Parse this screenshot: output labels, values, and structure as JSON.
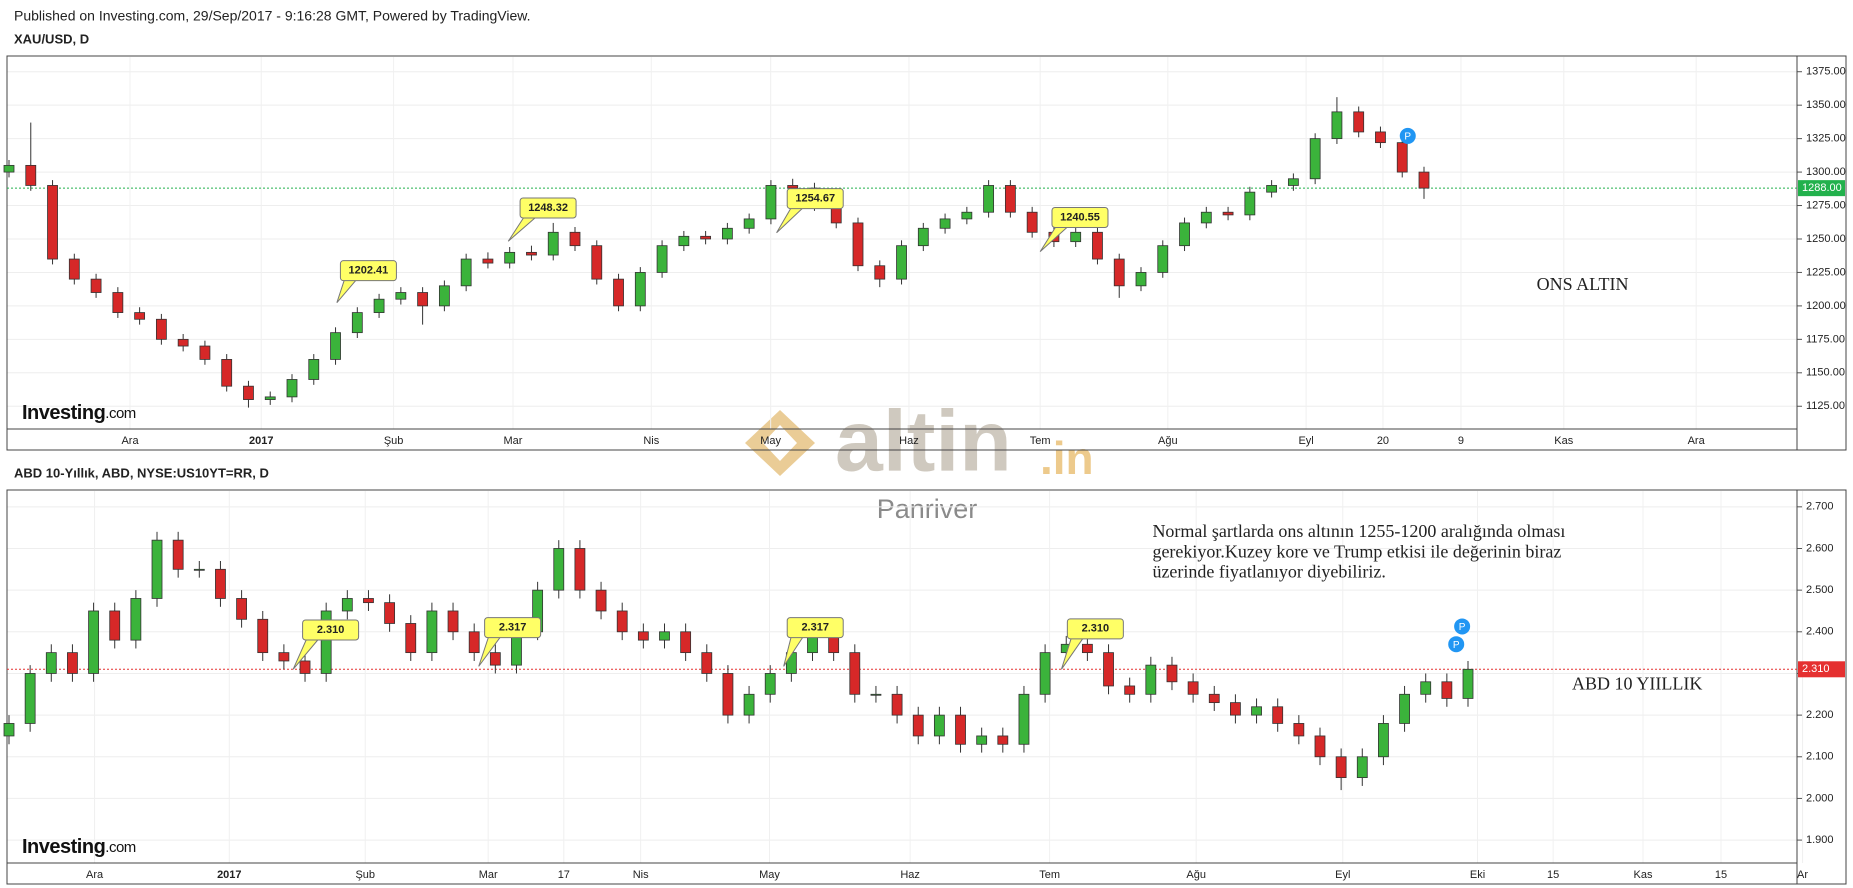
{
  "header": "Published on Investing.com, 29/Sep/2017 - 9:16:28 GMT, Powered by TradingView.",
  "watermark": {
    "main": "altin",
    "suffix": ".in",
    "sub": "Panriver"
  },
  "logo": {
    "main": "Investing",
    "suffix": ".com"
  },
  "event_marker": "P",
  "chart_data": [
    {
      "type": "candlestick",
      "title": "XAU/USD, D",
      "x_labels": [
        "Ara",
        "2017",
        "Şub",
        "Mar",
        "Nis",
        "May",
        "Haz",
        "Tem",
        "Ağu",
        "Eyl",
        "20",
        "9",
        "Kas",
        "Ara"
      ],
      "open": [
        1300,
        1305,
        1290,
        1235,
        1220,
        1210,
        1195,
        1190,
        1175,
        1170,
        1160,
        1140,
        1130,
        1132,
        1145,
        1160,
        1180,
        1195,
        1205,
        1210,
        1200,
        1215,
        1235,
        1232,
        1240,
        1238,
        1255,
        1245,
        1220,
        1200,
        1225,
        1245,
        1252,
        1250,
        1258,
        1265,
        1290,
        1288,
        1275,
        1262,
        1230,
        1220,
        1245,
        1258,
        1265,
        1270,
        1290,
        1270,
        1255,
        1248,
        1255,
        1235,
        1215,
        1225,
        1245,
        1262,
        1270,
        1268,
        1285,
        1290,
        1295,
        1325,
        1345,
        1330,
        1322,
        1300
      ],
      "high": [
        1309,
        1337,
        1294,
        1239,
        1224,
        1214,
        1199,
        1194,
        1179,
        1174,
        1164,
        1144,
        1136,
        1149,
        1164,
        1184,
        1199,
        1209,
        1214,
        1214,
        1219,
        1239,
        1240,
        1244,
        1245,
        1262,
        1259,
        1249,
        1224,
        1229,
        1249,
        1256,
        1256,
        1262,
        1269,
        1294,
        1295,
        1292,
        1279,
        1266,
        1234,
        1249,
        1262,
        1269,
        1274,
        1294,
        1294,
        1274,
        1259,
        1259,
        1259,
        1239,
        1229,
        1249,
        1266,
        1274,
        1274,
        1289,
        1294,
        1299,
        1329,
        1356,
        1349,
        1334,
        1326,
        1304
      ],
      "low": [
        1296,
        1286,
        1231,
        1216,
        1206,
        1191,
        1186,
        1171,
        1166,
        1156,
        1136,
        1124,
        1126,
        1128,
        1141,
        1156,
        1176,
        1191,
        1201,
        1186,
        1196,
        1211,
        1228,
        1228,
        1234,
        1234,
        1241,
        1216,
        1196,
        1196,
        1221,
        1241,
        1246,
        1246,
        1254,
        1261,
        1284,
        1271,
        1258,
        1226,
        1214,
        1216,
        1241,
        1254,
        1261,
        1266,
        1266,
        1251,
        1244,
        1244,
        1231,
        1206,
        1211,
        1221,
        1241,
        1258,
        1264,
        1264,
        1281,
        1286,
        1291,
        1321,
        1326,
        1318,
        1296,
        1280
      ],
      "close": [
        1305,
        1290,
        1235,
        1220,
        1210,
        1195,
        1190,
        1175,
        1170,
        1160,
        1140,
        1130,
        1132,
        1145,
        1160,
        1180,
        1195,
        1205,
        1210,
        1200,
        1215,
        1235,
        1232,
        1240,
        1238,
        1255,
        1245,
        1220,
        1200,
        1225,
        1245,
        1252,
        1250,
        1258,
        1265,
        1290,
        1288,
        1275,
        1262,
        1230,
        1220,
        1245,
        1258,
        1265,
        1270,
        1290,
        1270,
        1255,
        1248,
        1255,
        1235,
        1215,
        1225,
        1245,
        1262,
        1270,
        1268,
        1285,
        1290,
        1295,
        1325,
        1345,
        1330,
        1322,
        1300,
        1288
      ],
      "up_color": "#3bb33b",
      "down_color": "#d62828",
      "last_color": "#22b14c",
      "ylim": [
        1108,
        1386
      ],
      "yticks": [
        {
          "value": 1125,
          "label": "1125.00"
        },
        {
          "value": 1150,
          "label": "1150.00"
        },
        {
          "value": 1175,
          "label": "1175.00"
        },
        {
          "value": 1200,
          "label": "1200.00"
        },
        {
          "value": 1225,
          "label": "1225.00"
        },
        {
          "value": 1250,
          "label": "1250.00"
        },
        {
          "value": 1275,
          "label": "1275.00"
        },
        {
          "value": 1300,
          "label": "1300.00"
        },
        {
          "value": 1325,
          "label": "1325.00"
        },
        {
          "value": 1350,
          "label": "1350.00"
        },
        {
          "value": 1375,
          "label": "1375.00"
        }
      ],
      "last_price": {
        "value": 1288,
        "label": "1288.00"
      },
      "callouts": [
        1202.41,
        1248.32,
        1254.67,
        1240.55
      ],
      "annotation": "ONS ALTIN"
    },
    {
      "type": "candlestick",
      "title": "ABD 10-Yıllık, ABD, NYSE:US10YT=RR, D",
      "x_labels": [
        "Ara",
        "2017",
        "Şub",
        "Mar",
        "17",
        "Nis",
        "May",
        "Haz",
        "Tem",
        "Ağu",
        "Eyl",
        "Eki",
        "15",
        "Kas",
        "15",
        "Ar"
      ],
      "open": [
        2.15,
        2.18,
        2.3,
        2.35,
        2.3,
        2.45,
        2.38,
        2.48,
        2.62,
        2.55,
        2.55,
        2.48,
        2.43,
        2.35,
        2.33,
        2.3,
        2.45,
        2.48,
        2.47,
        2.42,
        2.35,
        2.45,
        2.4,
        2.35,
        2.32,
        2.4,
        2.5,
        2.6,
        2.5,
        2.45,
        2.4,
        2.38,
        2.4,
        2.35,
        2.3,
        2.2,
        2.25,
        2.3,
        2.35,
        2.4,
        2.35,
        2.25,
        2.25,
        2.2,
        2.15,
        2.2,
        2.13,
        2.15,
        2.13,
        2.25,
        2.35,
        2.37,
        2.35,
        2.27,
        2.25,
        2.32,
        2.28,
        2.25,
        2.23,
        2.2,
        2.22,
        2.18,
        2.15,
        2.1,
        2.05,
        2.1,
        2.18,
        2.25,
        2.28,
        2.24
      ],
      "high": [
        2.2,
        2.32,
        2.37,
        2.37,
        2.47,
        2.47,
        2.5,
        2.64,
        2.64,
        2.57,
        2.57,
        2.5,
        2.45,
        2.37,
        2.35,
        2.47,
        2.5,
        2.5,
        2.49,
        2.44,
        2.47,
        2.47,
        2.42,
        2.37,
        2.42,
        2.52,
        2.62,
        2.62,
        2.52,
        2.47,
        2.42,
        2.42,
        2.42,
        2.37,
        2.32,
        2.27,
        2.32,
        2.37,
        2.42,
        2.42,
        2.37,
        2.27,
        2.27,
        2.22,
        2.22,
        2.22,
        2.17,
        2.17,
        2.27,
        2.37,
        2.39,
        2.39,
        2.37,
        2.29,
        2.34,
        2.34,
        2.3,
        2.27,
        2.25,
        2.24,
        2.24,
        2.2,
        2.17,
        2.12,
        2.12,
        2.2,
        2.27,
        2.3,
        2.3,
        2.33
      ],
      "low": [
        2.13,
        2.16,
        2.28,
        2.28,
        2.28,
        2.36,
        2.36,
        2.46,
        2.53,
        2.53,
        2.46,
        2.41,
        2.33,
        2.31,
        2.28,
        2.28,
        2.43,
        2.45,
        2.4,
        2.33,
        2.33,
        2.38,
        2.33,
        2.3,
        2.3,
        2.38,
        2.48,
        2.48,
        2.43,
        2.38,
        2.36,
        2.36,
        2.33,
        2.28,
        2.18,
        2.18,
        2.23,
        2.28,
        2.33,
        2.33,
        2.23,
        2.23,
        2.18,
        2.13,
        2.13,
        2.11,
        2.11,
        2.11,
        2.11,
        2.23,
        2.33,
        2.33,
        2.25,
        2.23,
        2.23,
        2.26,
        2.23,
        2.21,
        2.18,
        2.18,
        2.16,
        2.13,
        2.08,
        2.02,
        2.03,
        2.08,
        2.16,
        2.23,
        2.22,
        2.22
      ],
      "close": [
        2.18,
        2.3,
        2.35,
        2.3,
        2.45,
        2.38,
        2.48,
        2.62,
        2.55,
        2.55,
        2.48,
        2.43,
        2.35,
        2.33,
        2.3,
        2.45,
        2.48,
        2.47,
        2.42,
        2.35,
        2.45,
        2.4,
        2.35,
        2.32,
        2.4,
        2.5,
        2.6,
        2.5,
        2.45,
        2.4,
        2.38,
        2.4,
        2.35,
        2.3,
        2.2,
        2.25,
        2.3,
        2.35,
        2.4,
        2.35,
        2.25,
        2.25,
        2.2,
        2.15,
        2.2,
        2.13,
        2.15,
        2.13,
        2.25,
        2.35,
        2.37,
        2.35,
        2.27,
        2.25,
        2.32,
        2.28,
        2.25,
        2.23,
        2.2,
        2.22,
        2.18,
        2.15,
        2.1,
        2.05,
        2.1,
        2.18,
        2.25,
        2.28,
        2.24,
        2.31
      ],
      "up_color": "#3bb33b",
      "down_color": "#d62828",
      "last_color": "#e53030",
      "ylim": [
        1.845,
        2.738
      ],
      "yticks": [
        {
          "value": 1.9,
          "label": "1.900"
        },
        {
          "value": 2.0,
          "label": "2.000"
        },
        {
          "value": 2.1,
          "label": "2.100"
        },
        {
          "value": 2.2,
          "label": "2.200"
        },
        {
          "value": 2.3,
          "label": "2.300"
        },
        {
          "value": 2.4,
          "label": "2.400"
        },
        {
          "value": 2.5,
          "label": "2.500"
        },
        {
          "value": 2.6,
          "label": "2.600"
        },
        {
          "value": 2.7,
          "label": "2.700"
        }
      ],
      "last_price": {
        "value": 2.31,
        "label": "2.310"
      },
      "callouts": [
        {
          "value": 2.31,
          "label": "2.310"
        },
        2.317,
        2.317,
        {
          "value": 2.31,
          "label": "2.310"
        }
      ],
      "annotation": "ABD 10 YIILLIK",
      "note": [
        "Normal şartlarda ons altının 1255-1200 aralığında olması",
        "gerekiyor.Kuzey kore ve Trump etkisi ile değerinin biraz",
        "üzerinde fiyatlanıyor diyebiliriz."
      ]
    }
  ]
}
